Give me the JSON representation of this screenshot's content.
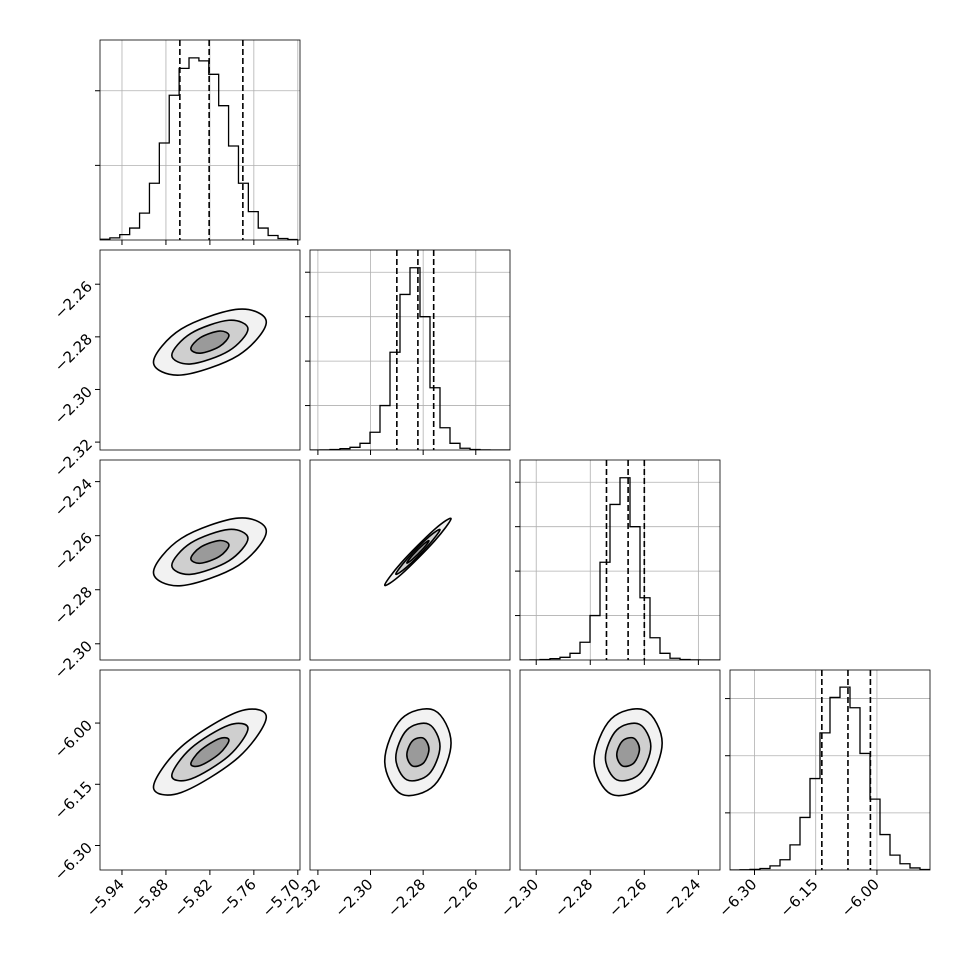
{
  "chart_data": [
    {
      "type": "histogram",
      "bins": [
        -5.97,
        -5.9565,
        -5.943,
        -5.9295,
        -5.916,
        -5.9025,
        -5.889,
        -5.8755,
        -5.862,
        -5.8485,
        -5.835,
        -5.8215,
        -5.808,
        -5.7945,
        -5.781,
        -5.7675,
        -5.754,
        -5.7405,
        -5.727,
        -5.7135,
        -5.7
      ],
      "values": [
        5,
        14,
        36,
        80,
        180,
        380,
        650,
        970,
        1150,
        1220,
        1200,
        1110,
        900,
        630,
        380,
        190,
        80,
        30,
        10,
        3
      ],
      "quantiles": [
        -5.861,
        -5.821,
        -5.775
      ],
      "xlim": [
        -5.97,
        -5.697
      ],
      "ylim": [
        0,
        1340
      ],
      "xticks": [
        -5.94,
        -5.88,
        -5.82,
        -5.76,
        -5.7
      ],
      "yticks": [
        500,
        1000
      ]
    },
    {
      "type": "contour",
      "xlim": [
        -5.97,
        -5.697
      ],
      "ylim": [
        -2.323,
        -2.247
      ],
      "yticks": [
        {
          "value": -2.26,
          "label": "−2.26"
        },
        {
          "value": -2.28,
          "label": "−2.28"
        },
        {
          "value": -2.3,
          "label": "−2.30"
        },
        {
          "value": -2.32,
          "label": "−2.32"
        }
      ],
      "contours": [
        {
          "x": [
            -5.743,
            -5.781,
            -5.859,
            -5.897,
            -5.859,
            -5.781
          ],
          "y": [
            -2.2744,
            -2.2695,
            -2.277,
            -2.2896,
            -2.2945,
            -2.287
          ]
        },
        {
          "x": [
            -5.768,
            -5.794,
            -5.846,
            -5.872,
            -5.846,
            -5.794
          ],
          "y": [
            -2.277,
            -2.2737,
            -2.2787,
            -2.287,
            -2.2903,
            -2.2853
          ]
        },
        {
          "x": [
            -5.794,
            -5.807,
            -5.833,
            -5.846,
            -5.833,
            -5.807
          ],
          "y": [
            -2.2795,
            -2.2778,
            -2.2803,
            -2.2845,
            -2.2862,
            -2.2837
          ]
        }
      ]
    },
    {
      "type": "histogram",
      "bins": [
        -2.323,
        -2.3192,
        -2.3154,
        -2.3116,
        -2.3078,
        -2.304,
        -2.3002,
        -2.2964,
        -2.2926,
        -2.2888,
        -2.285,
        -2.2812,
        -2.2774,
        -2.2736,
        -2.2698,
        -2.266,
        -2.2622,
        -2.2584,
        -2.2546,
        -2.2508,
        -2.247
      ],
      "values": [
        0,
        3,
        10,
        30,
        60,
        150,
        400,
        1000,
        2200,
        3500,
        4100,
        3000,
        1400,
        500,
        150,
        40,
        10,
        2,
        0,
        0
      ],
      "quantiles": [
        -2.29,
        -2.282,
        -2.276
      ],
      "xlim": [
        -2.323,
        -2.247
      ],
      "ylim": [
        0,
        4500
      ],
      "xticks": [
        -2.32,
        -2.3,
        -2.28,
        -2.26
      ],
      "yticks": [
        1000,
        2000,
        3000,
        4000
      ]
    },
    {
      "type": "contour",
      "xlim": [
        -5.97,
        -5.697
      ],
      "ylim": [
        -2.306,
        -2.232
      ],
      "yticks": [
        {
          "value": -2.24,
          "label": "−2.24"
        },
        {
          "value": -2.26,
          "label": "−2.26"
        },
        {
          "value": -2.28,
          "label": "−2.28"
        },
        {
          "value": -2.3,
          "label": "−2.30"
        }
      ],
      "contours": [
        {
          "x": [
            -5.743,
            -5.781,
            -5.859,
            -5.897,
            -5.859,
            -5.781
          ],
          "y": [
            -2.2584,
            -2.2535,
            -2.261,
            -2.2736,
            -2.2785,
            -2.271
          ]
        },
        {
          "x": [
            -5.768,
            -5.794,
            -5.846,
            -5.872,
            -5.846,
            -5.794
          ],
          "y": [
            -2.261,
            -2.2577,
            -2.2627,
            -2.271,
            -2.2743,
            -2.2693
          ]
        },
        {
          "x": [
            -5.794,
            -5.807,
            -5.833,
            -5.846,
            -5.833,
            -5.807
          ],
          "y": [
            -2.2635,
            -2.2618,
            -2.2643,
            -2.2685,
            -2.2702,
            -2.2677
          ]
        }
      ]
    },
    {
      "type": "contour",
      "xlim": [
        -2.323,
        -2.247
      ],
      "ylim": [
        -2.306,
        -2.232
      ],
      "contours": [
        {
          "x": [
            -2.2694,
            -2.2757,
            -2.2883,
            -2.2946,
            -2.2883,
            -2.2757
          ],
          "y": [
            -2.2537,
            -2.2577,
            -2.27,
            -2.2783,
            -2.2743,
            -2.262
          ]
        },
        {
          "x": [
            -2.2736,
            -2.2778,
            -2.2862,
            -2.2904,
            -2.2862,
            -2.2778
          ],
          "y": [
            -2.2578,
            -2.2604,
            -2.2687,
            -2.2742,
            -2.2716,
            -2.2633
          ]
        },
        {
          "x": [
            -2.2778,
            -2.2799,
            -2.2841,
            -2.2862,
            -2.2841,
            -2.2799
          ],
          "y": [
            -2.2619,
            -2.2632,
            -2.2673,
            -2.2701,
            -2.2688,
            -2.2647
          ]
        }
      ]
    },
    {
      "type": "histogram",
      "bins": [
        -2.306,
        -2.3023,
        -2.2986,
        -2.2949,
        -2.2912,
        -2.2875,
        -2.2838,
        -2.2801,
        -2.2764,
        -2.2727,
        -2.269,
        -2.2653,
        -2.2616,
        -2.2579,
        -2.2542,
        -2.2505,
        -2.2468,
        -2.2431,
        -2.2394,
        -2.2357,
        -2.232
      ],
      "values": [
        0,
        3,
        10,
        30,
        60,
        150,
        400,
        1000,
        2200,
        3500,
        4100,
        3000,
        1400,
        500,
        150,
        40,
        10,
        2,
        0,
        0
      ],
      "quantiles": [
        -2.274,
        -2.266,
        -2.26
      ],
      "xlim": [
        -2.306,
        -2.232
      ],
      "ylim": [
        0,
        4500
      ],
      "xticks": [
        -2.3,
        -2.28,
        -2.26,
        -2.24
      ],
      "yticks": [
        1000,
        2000,
        3000,
        4000
      ]
    },
    {
      "type": "contour",
      "xlim": [
        -5.97,
        -5.697
      ],
      "ylim": [
        -6.36,
        -5.87
      ],
      "xticks": [
        {
          "value": -5.94,
          "label": "−5.94"
        },
        {
          "value": -5.88,
          "label": "−5.88"
        },
        {
          "value": -5.82,
          "label": "−5.82"
        },
        {
          "value": -5.76,
          "label": "−5.76"
        },
        {
          "value": -5.7,
          "label": "−5.70"
        }
      ],
      "yticks": [
        {
          "value": -6.0,
          "label": "−6.00"
        },
        {
          "value": -6.15,
          "label": "−6.15"
        },
        {
          "value": -6.3,
          "label": "−6.30"
        }
      ],
      "contours": [
        {
          "x": [
            -5.743,
            -5.781,
            -5.859,
            -5.897,
            -5.859,
            -5.781
          ],
          "y": [
            -5.985,
            -5.972,
            -6.058,
            -6.157,
            -6.17,
            -6.084
          ]
        },
        {
          "x": [
            -5.768,
            -5.794,
            -5.846,
            -5.872,
            -5.846,
            -5.794
          ],
          "y": [
            -6.013,
            -6.005,
            -6.062,
            -6.129,
            -6.137,
            -6.08
          ]
        },
        {
          "x": [
            -5.794,
            -5.807,
            -5.833,
            -5.846,
            -5.833,
            -5.807
          ],
          "y": [
            -6.042,
            -6.038,
            -6.067,
            -6.1,
            -6.104,
            -6.075
          ]
        }
      ]
    },
    {
      "type": "contour",
      "xlim": [
        -2.323,
        -2.247
      ],
      "ylim": [
        -6.36,
        -5.87
      ],
      "xticks": [
        {
          "value": -2.32,
          "label": "−2.32"
        },
        {
          "value": -2.3,
          "label": "−2.30"
        },
        {
          "value": -2.28,
          "label": "−2.28"
        },
        {
          "value": -2.26,
          "label": "−2.26"
        }
      ],
      "contours": [
        {
          "x": [
            -2.2694,
            -2.2757,
            -2.2883,
            -2.2946,
            -2.2883,
            -2.2757
          ],
          "y": [
            -6.049,
            -5.969,
            -5.99,
            -6.093,
            -6.174,
            -6.152
          ]
        },
        {
          "x": [
            -2.2736,
            -2.2778,
            -2.2862,
            -2.2904,
            -2.2862,
            -2.2778
          ],
          "y": [
            -6.057,
            -6.003,
            -6.017,
            -6.085,
            -6.139,
            -6.125
          ]
        },
        {
          "x": [
            -2.2778,
            -2.2799,
            -2.2841,
            -2.2862,
            -2.2841,
            -2.2799
          ],
          "y": [
            -6.064,
            -6.037,
            -6.044,
            -6.078,
            -6.105,
            -6.098
          ]
        }
      ]
    },
    {
      "type": "contour",
      "xlim": [
        -2.306,
        -2.232
      ],
      "ylim": [
        -6.36,
        -5.87
      ],
      "xticks": [
        {
          "value": -2.3,
          "label": "−2.30"
        },
        {
          "value": -2.28,
          "label": "−2.28"
        },
        {
          "value": -2.26,
          "label": "−2.26"
        },
        {
          "value": -2.24,
          "label": "−2.24"
        }
      ],
      "contours": [
        {
          "x": [
            -2.2534,
            -2.2597,
            -2.2723,
            -2.2786,
            -2.2723,
            -2.2597
          ],
          "y": [
            -6.049,
            -5.969,
            -5.99,
            -6.093,
            -6.174,
            -6.152
          ]
        },
        {
          "x": [
            -2.2576,
            -2.2618,
            -2.2702,
            -2.2744,
            -2.2702,
            -2.2618
          ],
          "y": [
            -6.057,
            -6.003,
            -6.017,
            -6.085,
            -6.139,
            -6.125
          ]
        },
        {
          "x": [
            -2.2618,
            -2.2639,
            -2.2681,
            -2.2702,
            -2.2681,
            -2.2639
          ],
          "y": [
            -6.064,
            -6.037,
            -6.044,
            -6.078,
            -6.105,
            -6.098
          ]
        }
      ]
    },
    {
      "type": "histogram",
      "bins": [
        -6.36,
        -6.3355,
        -6.311,
        -6.2865,
        -6.262,
        -6.2375,
        -6.213,
        -6.1885,
        -6.164,
        -6.1395,
        -6.115,
        -6.0905,
        -6.066,
        -6.0415,
        -6.017,
        -5.9925,
        -5.968,
        -5.9435,
        -5.919,
        -5.8945,
        -5.87
      ],
      "values": [
        0,
        2,
        5,
        13,
        36,
        90,
        220,
        460,
        800,
        1200,
        1510,
        1600,
        1420,
        1020,
        620,
        310,
        130,
        55,
        18,
        4
      ],
      "quantiles": [
        -6.135,
        -6.071,
        -6.016
      ],
      "xlim": [
        -6.36,
        -5.87
      ],
      "ylim": [
        0,
        1750
      ],
      "xticks": [
        {
          "value": -6.3,
          "label": "−6.30"
        },
        {
          "value": -6.15,
          "label": "−6.15"
        },
        {
          "value": -6.0,
          "label": "−6.00"
        }
      ],
      "yticks": [
        500,
        1000,
        1500
      ]
    }
  ]
}
